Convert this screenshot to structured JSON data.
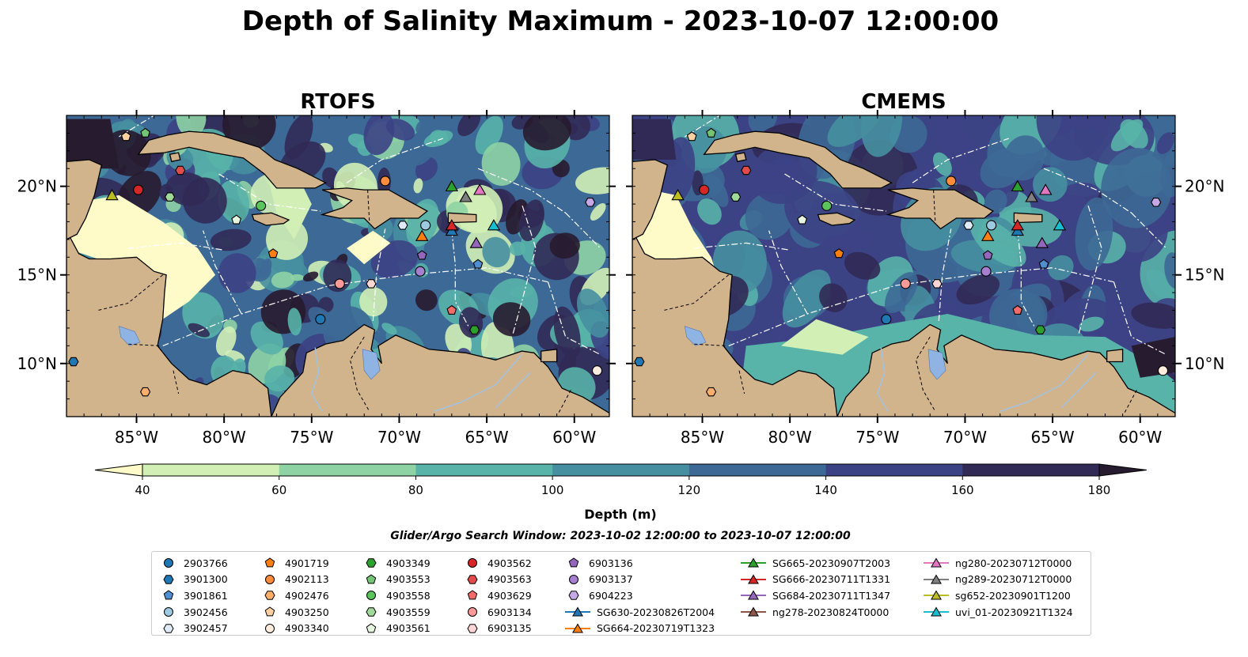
{
  "figure": {
    "title": "Depth of Salinity Maximum - 2023-10-07 12:00:00",
    "subtitle": "Glider/Argo Search Window: 2023-10-02 12:00:00 to 2023-10-07 12:00:00"
  },
  "colors": {
    "land": "#d2b48c",
    "lakes": "#8fb3e3",
    "rivers": "#9ec3e6",
    "eez_lines": "#ffffff"
  },
  "chart_data": [
    {
      "type": "heatmap",
      "title": "RTOFS",
      "xlim": [
        -89,
        -58
      ],
      "ylim": [
        7,
        24
      ],
      "xticks": [
        -85,
        -80,
        -75,
        -70,
        -65,
        -60
      ],
      "xtick_labels": [
        "85°W",
        "80°W",
        "75°W",
        "70°W",
        "65°W",
        "60°W"
      ],
      "yticks": [
        10,
        15,
        20
      ],
      "ytick_labels": [
        "10°N",
        "15°N",
        "20°N"
      ],
      "variable": "depth of salinity maximum (m)",
      "dominant_regime": "mixed, strong eddy structure; shallow (<40 m) plume over western Caribbean and Gulf of Honduras"
    },
    {
      "type": "heatmap",
      "title": "CMEMS",
      "xlim": [
        -89,
        -58
      ],
      "ylim": [
        7,
        24
      ],
      "xticks": [
        -85,
        -80,
        -75,
        -70,
        -65,
        -60
      ],
      "xtick_labels": [
        "85°W",
        "80°W",
        "75°W",
        "70°W",
        "65°W",
        "60°W"
      ],
      "yticks": [
        10,
        15,
        20
      ],
      "ytick_labels": [
        "10°N",
        "15°N",
        "20°N"
      ],
      "variable": "depth of salinity maximum (m)",
      "dominant_regime": "smoother field, mostly 120-160 m; shallower bands along Central/South American coasts"
    }
  ],
  "colorbar": {
    "label": "Depth (m)",
    "min": 40,
    "max": 180,
    "extend": "both",
    "ticks": [
      40,
      60,
      80,
      100,
      120,
      140,
      160,
      180
    ],
    "colors": [
      "#fefbc9",
      "#d2f0b6",
      "#8ed3a4",
      "#58b3a9",
      "#468fa0",
      "#3d6996",
      "#3c4385",
      "#312a56",
      "#271b2f"
    ]
  },
  "floats": [
    {
      "id": "2903766",
      "marker": "circle",
      "color": "#1f77b4",
      "lon": -74.5,
      "lat": 12.5
    },
    {
      "id": "3901300",
      "marker": "hexagon",
      "color": "#1f77b4",
      "lon": -88.6,
      "lat": 10.1
    },
    {
      "id": "3901861",
      "marker": "pentagon",
      "color": "#4f8fd1",
      "lon": -65.5,
      "lat": 15.6
    },
    {
      "id": "3902456",
      "marker": "circle",
      "color": "#9ecae1",
      "lon": -68.5,
      "lat": 17.8
    },
    {
      "id": "3902457",
      "marker": "hexagon",
      "color": "#deebf7",
      "lon": -69.8,
      "lat": 17.8
    },
    {
      "id": "4901719",
      "marker": "pentagon",
      "color": "#ff7f0e",
      "lon": -77.2,
      "lat": 16.2
    },
    {
      "id": "4902113",
      "marker": "circle",
      "color": "#fd8d3c",
      "lon": -70.8,
      "lat": 20.3
    },
    {
      "id": "4902476",
      "marker": "hexagon",
      "color": "#fdae6b",
      "lon": -84.5,
      "lat": 8.4
    },
    {
      "id": "4903250",
      "marker": "pentagon",
      "color": "#fdd0a2",
      "lon": -85.6,
      "lat": 22.8
    },
    {
      "id": "4903340",
      "marker": "circle",
      "color": "#feedde",
      "lon": -58.7,
      "lat": 9.6
    },
    {
      "id": "4903349",
      "marker": "hexagon",
      "color": "#2ca02c",
      "lon": -65.7,
      "lat": 11.9
    },
    {
      "id": "4903553",
      "marker": "pentagon",
      "color": "#74c476",
      "lon": -84.5,
      "lat": 23.0
    },
    {
      "id": "4903558",
      "marker": "circle",
      "color": "#5cc45c",
      "lon": -77.9,
      "lat": 18.9
    },
    {
      "id": "4903559",
      "marker": "hexagon",
      "color": "#a1d99b",
      "lon": -83.1,
      "lat": 19.4
    },
    {
      "id": "4903561",
      "marker": "pentagon",
      "color": "#e5f5e0",
      "lon": -79.3,
      "lat": 18.1
    },
    {
      "id": "4903562",
      "marker": "circle",
      "color": "#d62728",
      "lon": -84.9,
      "lat": 19.8
    },
    {
      "id": "4903563",
      "marker": "hexagon",
      "color": "#e34a4a",
      "lon": -82.5,
      "lat": 20.9
    },
    {
      "id": "4903629",
      "marker": "pentagon",
      "color": "#f16b6b",
      "lon": -67.0,
      "lat": 13.0
    },
    {
      "id": "6903134",
      "marker": "circle",
      "color": "#fb9a99",
      "lon": -73.4,
      "lat": 14.5
    },
    {
      "id": "6903135",
      "marker": "hexagon",
      "color": "#fcd5d5",
      "lon": -71.6,
      "lat": 14.5
    },
    {
      "id": "6903136",
      "marker": "pentagon",
      "color": "#9467bd",
      "lon": -68.7,
      "lat": 16.1
    },
    {
      "id": "6903137",
      "marker": "circle",
      "color": "#a67fd0",
      "lon": -68.8,
      "lat": 15.2
    },
    {
      "id": "6904223",
      "marker": "hexagon",
      "color": "#c7a8e6",
      "lon": -59.1,
      "lat": 19.1
    }
  ],
  "gliders": [
    {
      "id": "SG630-20230826T2004",
      "color": "#1f77b4",
      "lon": -67.0,
      "lat": 17.5
    },
    {
      "id": "SG664-20230719T1323",
      "color": "#ff7f0e",
      "lon": -68.7,
      "lat": 17.2
    },
    {
      "id": "SG665-20230907T2003",
      "color": "#2ca02c",
      "lon": -67.0,
      "lat": 20.0
    },
    {
      "id": "SG666-20230711T1331",
      "color": "#d62728",
      "lon": -67.0,
      "lat": 17.8
    },
    {
      "id": "SG684-20230711T1347",
      "color": "#9467bd",
      "lon": -65.6,
      "lat": 16.8
    },
    {
      "id": "ng278-20230824T0000",
      "color": "#8c564b",
      "lon": -66.2,
      "lat": 19.4
    },
    {
      "id": "ng280-20230712T0000",
      "color": "#e377c2",
      "lon": -65.4,
      "lat": 19.8
    },
    {
      "id": "ng289-20230712T0000",
      "color": "#7f7f7f",
      "lon": -66.2,
      "lat": 19.4
    },
    {
      "id": "sg652-20230901T1200",
      "color": "#bcbd22",
      "lon": -86.4,
      "lat": 19.5
    },
    {
      "id": "uvi_01-20230921T1324",
      "color": "#17becf",
      "lon": -64.6,
      "lat": 17.8
    }
  ]
}
